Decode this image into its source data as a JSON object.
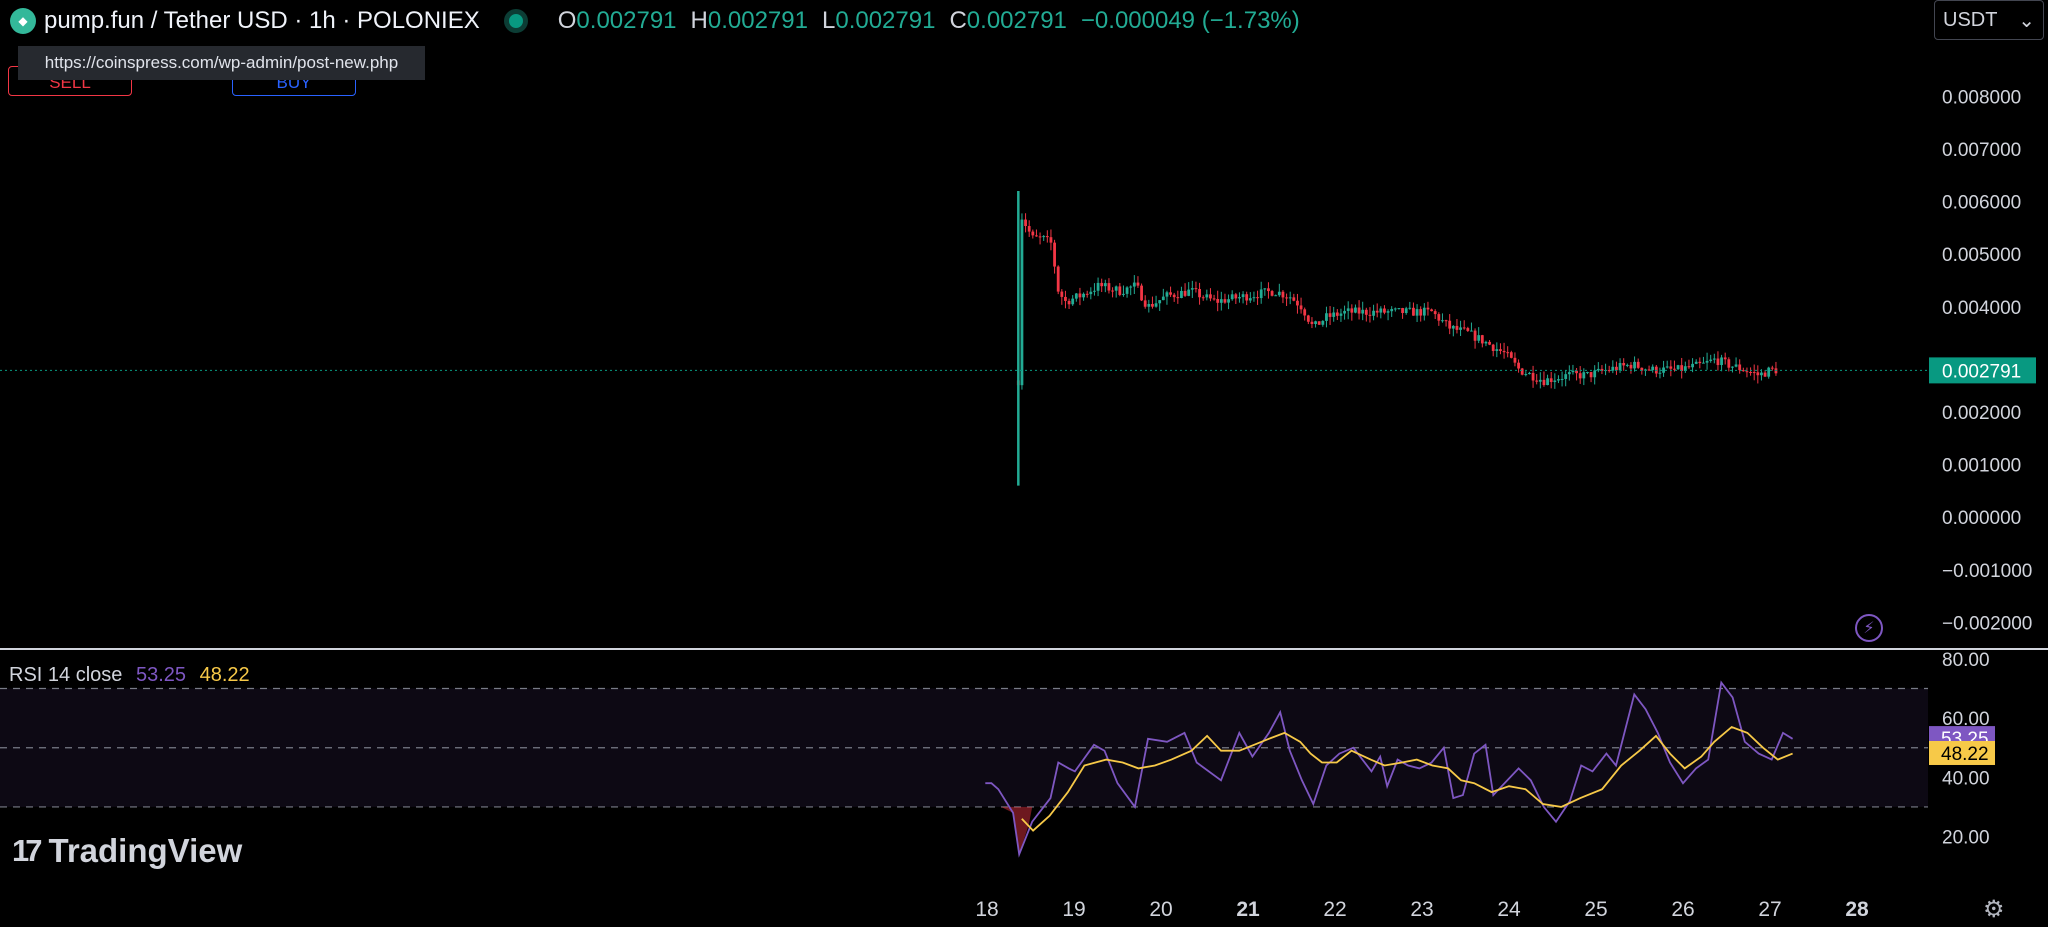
{
  "header": {
    "symbol_title": "pump.fun / Tether USD · 1h · POLONIEX",
    "ohlc": [
      {
        "label": "O",
        "value": "0.002791"
      },
      {
        "label": "H",
        "value": "0.002791"
      },
      {
        "label": "L",
        "value": "0.002791"
      },
      {
        "label": "C",
        "value": "0.002791"
      }
    ],
    "change": "−0.000049 (−1.73%)",
    "logo_icon": "token-logo-icon",
    "live_icon": "market-status-dot-icon"
  },
  "tooltip": {
    "url": "https://coinspress.com/wp-admin/post-new.php"
  },
  "trade_buttons": {
    "sell": "SELL",
    "buy": "BUY"
  },
  "currency_select": {
    "value": "USDT",
    "icon": "chevron-down-icon"
  },
  "rsi_legend": {
    "name": "RSI 14 close",
    "rsi": "53.25",
    "ma": "48.22"
  },
  "branding": {
    "name": "TradingView"
  },
  "icons": {
    "bolt": "lightning-icon",
    "settings": "gear-icon"
  },
  "colors": {
    "up": "#22ab94",
    "down": "#f23645",
    "rsi": "#7e57c2",
    "rsi_ma": "#f7c948",
    "last_price": "#089981"
  },
  "chart_data": [
    {
      "type": "candlestick",
      "price_axis_labels": [
        "0.008000",
        "0.007000",
        "0.006000",
        "0.005000",
        "0.004000",
        "0.002000",
        "0.001000",
        "0.000000",
        "−0.001000",
        "−0.002000"
      ],
      "ylim": [
        -0.0022,
        0.0085
      ],
      "last_price": "0.002791",
      "time_axis_labels": [
        "18",
        "19",
        "20",
        "21",
        "22",
        "23",
        "24",
        "25",
        "26",
        "27",
        "28"
      ],
      "grid": false,
      "series_path_close": [
        [
          18.36,
          0.0026
        ],
        [
          18.39,
          0.00575
        ],
        [
          18.52,
          0.0053
        ],
        [
          18.64,
          0.0053
        ],
        [
          18.74,
          0.0052
        ],
        [
          18.82,
          0.0043
        ],
        [
          18.9,
          0.0041
        ],
        [
          19.06,
          0.0042
        ],
        [
          19.29,
          0.0044
        ],
        [
          19.53,
          0.0043
        ],
        [
          19.71,
          0.0044
        ],
        [
          19.85,
          0.004
        ],
        [
          20.06,
          0.0042
        ],
        [
          20.34,
          0.0043
        ],
        [
          20.62,
          0.0041
        ],
        [
          20.97,
          0.0042
        ],
        [
          21.3,
          0.0043
        ],
        [
          21.48,
          0.0042
        ],
        [
          21.62,
          0.004
        ],
        [
          21.75,
          0.0036
        ],
        [
          21.9,
          0.0038
        ],
        [
          22.13,
          0.0039
        ],
        [
          22.52,
          0.0039
        ],
        [
          22.81,
          0.0039
        ],
        [
          23.11,
          0.0039
        ],
        [
          23.32,
          0.0036
        ],
        [
          23.53,
          0.0035
        ],
        [
          23.76,
          0.0033
        ],
        [
          23.96,
          0.0031
        ],
        [
          24.12,
          0.0028
        ],
        [
          24.4,
          0.0026
        ],
        [
          24.69,
          0.0027
        ],
        [
          24.91,
          0.0027
        ],
        [
          25.13,
          0.0028
        ],
        [
          25.41,
          0.0029
        ],
        [
          25.64,
          0.0028
        ],
        [
          25.94,
          0.0028
        ],
        [
          26.23,
          0.0029
        ],
        [
          26.37,
          0.003
        ],
        [
          26.52,
          0.0029
        ],
        [
          26.71,
          0.0028
        ],
        [
          26.87,
          0.0027
        ],
        [
          27.01,
          0.0028
        ],
        [
          27.08,
          0.0028
        ]
      ]
    },
    {
      "type": "line",
      "title": "RSI 14 close",
      "series": [
        {
          "name": "RSI",
          "color": "#7e57c2",
          "points": [
            [
              17.98,
              38
            ],
            [
              18.05,
              38
            ],
            [
              18.13,
              36
            ],
            [
              18.3,
              28
            ],
            [
              18.37,
              14
            ],
            [
              18.52,
              25
            ],
            [
              18.73,
              33
            ],
            [
              18.82,
              45
            ],
            [
              18.94,
              43
            ],
            [
              19.01,
              42
            ],
            [
              19.23,
              51
            ],
            [
              19.35,
              49
            ],
            [
              19.5,
              38
            ],
            [
              19.7,
              30
            ],
            [
              19.85,
              53
            ],
            [
              20.07,
              52
            ],
            [
              20.27,
              55
            ],
            [
              20.41,
              45
            ],
            [
              20.69,
              39
            ],
            [
              20.9,
              55
            ],
            [
              21.05,
              47
            ],
            [
              21.24,
              55
            ],
            [
              21.37,
              62
            ],
            [
              21.48,
              49
            ],
            [
              21.62,
              39
            ],
            [
              21.75,
              31
            ],
            [
              21.9,
              44
            ],
            [
              22.05,
              48
            ],
            [
              22.21,
              50
            ],
            [
              22.42,
              42
            ],
            [
              22.52,
              47
            ],
            [
              22.6,
              37
            ],
            [
              22.72,
              46
            ],
            [
              22.84,
              44
            ],
            [
              22.97,
              43
            ],
            [
              23.11,
              45
            ],
            [
              23.25,
              50
            ],
            [
              23.36,
              33
            ],
            [
              23.47,
              34
            ],
            [
              23.6,
              48
            ],
            [
              23.73,
              51
            ],
            [
              23.82,
              34
            ],
            [
              24.11,
              43
            ],
            [
              24.25,
              39
            ],
            [
              24.4,
              30
            ],
            [
              24.54,
              25
            ],
            [
              24.7,
              32
            ],
            [
              24.83,
              44
            ],
            [
              24.96,
              42
            ],
            [
              25.12,
              48
            ],
            [
              25.23,
              44
            ],
            [
              25.44,
              68
            ],
            [
              25.57,
              63
            ],
            [
              25.71,
              55
            ],
            [
              25.85,
              45
            ],
            [
              26.0,
              38
            ],
            [
              26.15,
              43
            ],
            [
              26.29,
              46
            ],
            [
              26.44,
              72
            ],
            [
              26.57,
              67
            ],
            [
              26.71,
              52
            ],
            [
              26.87,
              48
            ],
            [
              27.02,
              46
            ],
            [
              27.15,
              55
            ],
            [
              27.26,
              53
            ]
          ]
        },
        {
          "name": "RSI-based MA",
          "color": "#f7c948",
          "points": [
            [
              18.4,
              26
            ],
            [
              18.53,
              22
            ],
            [
              18.72,
              27
            ],
            [
              18.93,
              35
            ],
            [
              19.12,
              44
            ],
            [
              19.37,
              46
            ],
            [
              19.56,
              45
            ],
            [
              19.74,
              43
            ],
            [
              19.93,
              44
            ],
            [
              20.12,
              46
            ],
            [
              20.35,
              49
            ],
            [
              20.53,
              54
            ],
            [
              20.69,
              49
            ],
            [
              20.9,
              49
            ],
            [
              21.07,
              51
            ],
            [
              21.24,
              53
            ],
            [
              21.42,
              55
            ],
            [
              21.6,
              52
            ],
            [
              21.72,
              48
            ],
            [
              21.85,
              45
            ],
            [
              22.02,
              45
            ],
            [
              22.19,
              49
            ],
            [
              22.41,
              46
            ],
            [
              22.57,
              44
            ],
            [
              22.77,
              45
            ],
            [
              22.94,
              46
            ],
            [
              23.12,
              44
            ],
            [
              23.3,
              43
            ],
            [
              23.45,
              39
            ],
            [
              23.6,
              38
            ],
            [
              23.8,
              35
            ],
            [
              24.0,
              37
            ],
            [
              24.19,
              36
            ],
            [
              24.39,
              31
            ],
            [
              24.6,
              30
            ],
            [
              24.82,
              33
            ],
            [
              25.07,
              36
            ],
            [
              25.29,
              44
            ],
            [
              25.5,
              49
            ],
            [
              25.69,
              54
            ],
            [
              25.85,
              48
            ],
            [
              26.02,
              43
            ],
            [
              26.21,
              47
            ],
            [
              26.36,
              52
            ],
            [
              26.56,
              57
            ],
            [
              26.74,
              55
            ],
            [
              26.92,
              50
            ],
            [
              27.09,
              46
            ],
            [
              27.26,
              48
            ]
          ]
        }
      ],
      "y_axis_labels": [
        "80.00",
        "60.00",
        "53.25",
        "48.22",
        "40.00",
        "20.00"
      ],
      "ylim": [
        6,
        83
      ],
      "bands": {
        "upper": 70,
        "middle": 50,
        "lower": 30
      }
    }
  ]
}
